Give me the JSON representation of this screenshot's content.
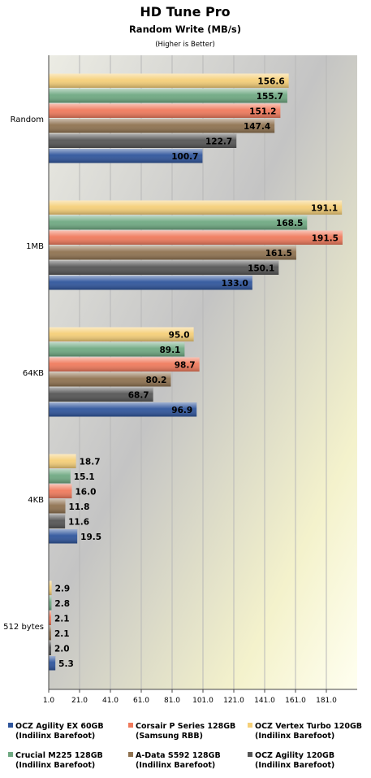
{
  "chart_data": {
    "type": "bar",
    "orientation": "horizontal",
    "title": "HD Tune Pro",
    "subtitle": "Random Write (MB/s)",
    "note": "(Higher is Better)",
    "categories": [
      "Random",
      "1MB",
      "64KB",
      "4KB",
      "512 bytes"
    ],
    "series": [
      {
        "name": "OCZ Vertex Turbo 120GB",
        "name2": "(Indilinx Barefoot)",
        "color": "#f5cf78",
        "values": [
          156.6,
          191.1,
          95.0,
          18.7,
          2.9
        ]
      },
      {
        "name": "Crucial M225 128GB",
        "name2": "(Indilinx Barefoot)",
        "color": "#6fa982",
        "values": [
          155.7,
          168.5,
          89.1,
          15.1,
          2.8
        ]
      },
      {
        "name": "Corsair P Series 128GB",
        "name2": "(Samsung RBB)",
        "color": "#f07a5c",
        "values": [
          151.2,
          191.5,
          98.7,
          16.0,
          2.1
        ]
      },
      {
        "name": "A-Data S592 128GB",
        "name2": "(Indilinx Barefoot)",
        "color": "#8f7250",
        "values": [
          147.4,
          161.5,
          80.2,
          11.8,
          2.1
        ]
      },
      {
        "name": "OCZ Agility 120GB",
        "name2": "(Indilinx Barefoot)",
        "color": "#555555",
        "values": [
          122.7,
          150.1,
          68.7,
          11.6,
          2.0
        ]
      },
      {
        "name": "OCZ Agility EX 60GB",
        "name2": "(Indilinx Barefoot)",
        "color": "#2f559c",
        "values": [
          100.7,
          133.0,
          96.9,
          19.5,
          5.3
        ]
      }
    ],
    "x_ticks": [
      "1.0",
      "21.0",
      "41.0",
      "61.0",
      "81.0",
      "101.0",
      "121.0",
      "141.0",
      "161.0",
      "181.0"
    ],
    "xlim": [
      1.0,
      201.0
    ],
    "grid": true,
    "legend_position": "bottom",
    "legend_order": [
      5,
      2,
      0,
      1,
      3,
      4
    ]
  }
}
